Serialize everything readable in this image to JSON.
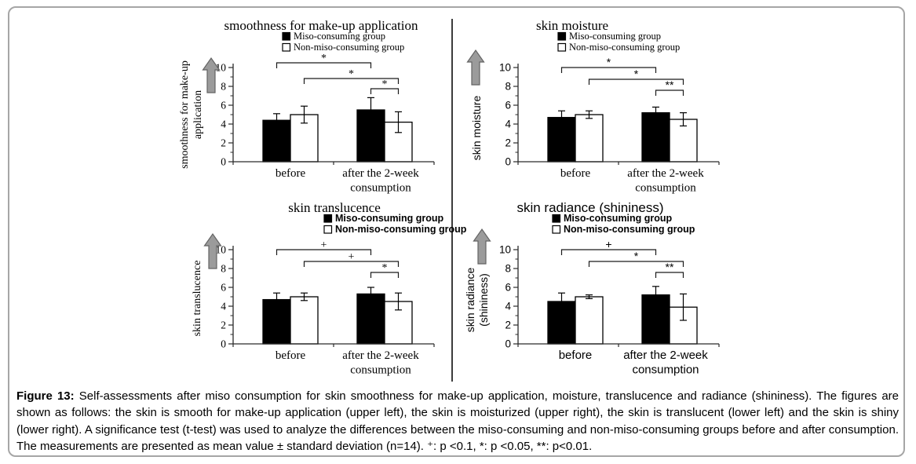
{
  "figure": {
    "caption_label": "Figure 13:",
    "caption_text": " Self-assessments after miso consumption for skin smoothness for make-up application, moisture, translucence and radiance (shininess). The figures are shown as follows: the skin is smooth for make-up application (upper left), the skin is moisturized (upper right), the skin is translucent (lower left) and the skin is shiny (lower right). A significance test (t-test) was used to analyze the differences between the miso-consuming and non-miso-consuming groups before and after consumption. The measurements are presented as mean value ± standard deviation (n=14). ⁺: p <0.1, *: p <0.05, **: p<0.01."
  },
  "colors": {
    "miso_bar": "#000000",
    "non_miso_bar": "#ffffff",
    "axis": "#2a2a2a",
    "arrow_fill": "#9b9b9b",
    "arrow_stroke": "#636363"
  },
  "chart_data": [
    {
      "type": "bar",
      "title": "smoothness for make-up application",
      "ylabel_lines": [
        "smoothness for make-up",
        "application"
      ],
      "categories": [
        "before",
        "after the 2-week consumption"
      ],
      "category_lines": [
        [
          "before"
        ],
        [
          "after the 2-week",
          "consumption"
        ]
      ],
      "legend": [
        "Miso-consuming group",
        "Non-miso-consuming group"
      ],
      "ylim": [
        0,
        10
      ],
      "yticks": [
        0,
        2,
        4,
        6,
        8,
        10
      ],
      "series": [
        {
          "name": "Miso-consuming group",
          "fill": "black",
          "values": [
            4.4,
            5.5
          ],
          "sd": [
            0.7,
            1.3
          ]
        },
        {
          "name": "Non-miso-consuming group",
          "fill": "white",
          "values": [
            5.0,
            4.2
          ],
          "sd": [
            0.9,
            1.1
          ]
        }
      ],
      "significance": [
        {
          "from_bar": "miso-before",
          "to_bar": "miso-after",
          "label": "*"
        },
        {
          "from_bar": "non-miso-before",
          "to_bar": "non-miso-after",
          "label": "*"
        },
        {
          "from_bar": "miso-after",
          "to_bar": "non-miso-after",
          "label": "*"
        }
      ]
    },
    {
      "type": "bar",
      "title": "skin moisture",
      "ylabel_lines": [
        "skin moisture"
      ],
      "categories": [
        "before",
        "after the 2-week consumption"
      ],
      "category_lines": [
        [
          "before"
        ],
        [
          "after the 2-week",
          "consumption"
        ]
      ],
      "legend": [
        "Miso-consuming group",
        "Non-miso-consuming group"
      ],
      "ylim": [
        0,
        10
      ],
      "yticks": [
        0,
        2,
        4,
        6,
        8,
        10
      ],
      "series": [
        {
          "name": "Miso-consuming group",
          "fill": "black",
          "values": [
            4.7,
            5.2
          ],
          "sd": [
            0.7,
            0.6
          ]
        },
        {
          "name": "Non-miso-consuming group",
          "fill": "white",
          "values": [
            5.0,
            4.5
          ],
          "sd": [
            0.4,
            0.7
          ]
        }
      ],
      "significance": [
        {
          "from_bar": "miso-before",
          "to_bar": "miso-after",
          "label": "*"
        },
        {
          "from_bar": "non-miso-before",
          "to_bar": "non-miso-after",
          "label": "*"
        },
        {
          "from_bar": "miso-after",
          "to_bar": "non-miso-after",
          "label": "**"
        }
      ]
    },
    {
      "type": "bar",
      "title": "skin translucence",
      "ylabel_lines": [
        "skin translucence"
      ],
      "categories": [
        "before",
        "after the 2-week consumption"
      ],
      "category_lines": [
        [
          "before"
        ],
        [
          "after the 2-week",
          "consumption"
        ]
      ],
      "legend": [
        "Miso-consuming group",
        "Non-miso-consuming group"
      ],
      "ylim": [
        0,
        10
      ],
      "yticks": [
        0,
        2,
        4,
        6,
        8,
        10
      ],
      "series": [
        {
          "name": "Miso-consuming group",
          "fill": "black",
          "values": [
            4.7,
            5.3
          ],
          "sd": [
            0.7,
            0.7
          ]
        },
        {
          "name": "Non-miso-consuming group",
          "fill": "white",
          "values": [
            5.0,
            4.5
          ],
          "sd": [
            0.4,
            0.9
          ]
        }
      ],
      "significance": [
        {
          "from_bar": "miso-before",
          "to_bar": "miso-after",
          "label": "+"
        },
        {
          "from_bar": "non-miso-before",
          "to_bar": "non-miso-after",
          "label": "+"
        },
        {
          "from_bar": "miso-after",
          "to_bar": "non-miso-after",
          "label": "*"
        }
      ]
    },
    {
      "type": "bar",
      "title": "skin radiance (shininess)",
      "ylabel_lines": [
        "skin radiance",
        "(shininess)"
      ],
      "categories": [
        "before",
        "after the 2-week consumption"
      ],
      "category_lines": [
        [
          "before"
        ],
        [
          "after the 2-week",
          "consumption"
        ]
      ],
      "legend": [
        "Miso-consuming group",
        "Non-miso-consuming group"
      ],
      "ylim": [
        0,
        10
      ],
      "yticks": [
        0,
        2,
        4,
        6,
        8,
        10
      ],
      "series": [
        {
          "name": "Miso-consuming group",
          "fill": "black",
          "values": [
            4.5,
            5.2
          ],
          "sd": [
            0.9,
            0.9
          ]
        },
        {
          "name": "Non-miso-consuming group",
          "fill": "white",
          "values": [
            5.0,
            3.9
          ],
          "sd": [
            0.2,
            1.4
          ]
        }
      ],
      "significance": [
        {
          "from_bar": "miso-before",
          "to_bar": "miso-after",
          "label": "+"
        },
        {
          "from_bar": "non-miso-before",
          "to_bar": "non-miso-after",
          "label": "*"
        },
        {
          "from_bar": "miso-after",
          "to_bar": "non-miso-after",
          "label": "**"
        }
      ]
    }
  ]
}
